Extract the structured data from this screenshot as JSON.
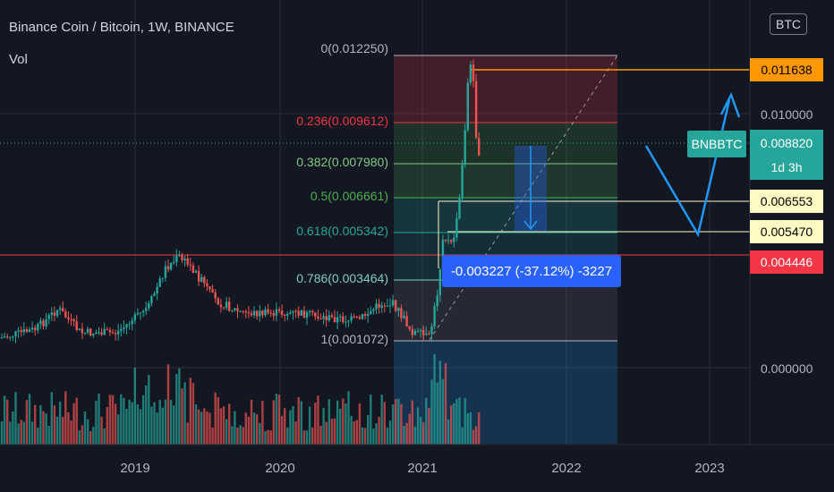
{
  "chart_data": {
    "type": "candlestick",
    "title": "Binance Coin / Bitcoin, 1W, BINANCE",
    "volume_label": "Vol",
    "currency_button": "BTC",
    "x_ticks": [
      "2019",
      "2020",
      "2021",
      "2022",
      "2023"
    ],
    "y_ticks": [
      "0.010000",
      "0.000000"
    ],
    "colors": {
      "background": "#131722",
      "up": "#26a69a",
      "down": "#ef5350",
      "text": "#b2b5be",
      "grid": "#2a2e39",
      "fib_red": "#f23645",
      "orange": "#ff9800",
      "blue": "#2962ff"
    },
    "fib_levels": [
      {
        "ratio": "0",
        "label": "0(0.012250)",
        "color": "#b2b5be"
      },
      {
        "ratio": "0.236",
        "label": "0.236(0.009612)",
        "color": "#f23645"
      },
      {
        "ratio": "0.382",
        "label": "0.382(0.007980)",
        "color": "#81c784"
      },
      {
        "ratio": "0.5",
        "label": "0.5(0.006661)",
        "color": "#4caf50"
      },
      {
        "ratio": "0.618",
        "label": "0.618(0.005342)",
        "color": "#26a69a"
      },
      {
        "ratio": "0.786",
        "label": "0.786(0.003464)",
        "color": "#80cbc4"
      },
      {
        "ratio": "1",
        "label": "1(0.001072)",
        "color": "#b2b5be"
      }
    ],
    "price_labels": [
      {
        "value": "0.011638",
        "bg": "#ff9800",
        "fg": "#000000"
      },
      {
        "value": "0.006553",
        "bg": "#fff9c4",
        "fg": "#000000"
      },
      {
        "value": "0.005470",
        "bg": "#fff9c4",
        "fg": "#000000"
      },
      {
        "value": "0.004446",
        "bg": "#f23645",
        "fg": "#ffffff"
      }
    ],
    "current": {
      "symbol": "BNBBTC",
      "price": "0.008820",
      "countdown": "1d 3h"
    },
    "measure": {
      "text": "-0.003227 (-37.12%) -3227"
    }
  }
}
